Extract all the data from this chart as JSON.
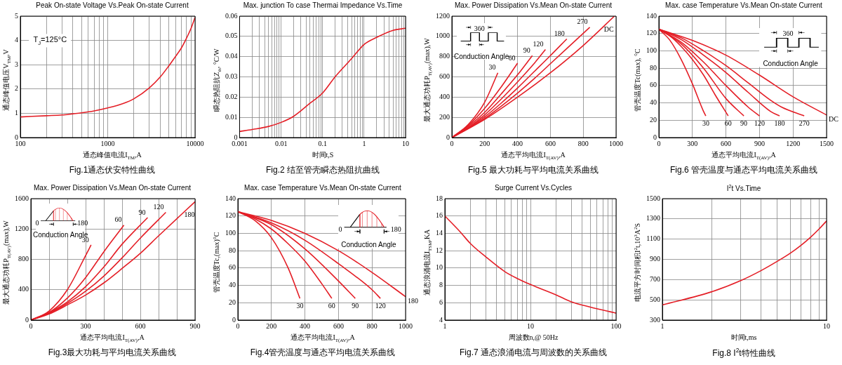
{
  "chart_data": [
    {
      "type": "line",
      "title": "Peak On-state Voltage Vs.Peak On-state Current",
      "xlabel": "通态峰值电流I$_{TM}$,A",
      "ylabel": "通态峰值电压V$_{TM}$,V",
      "annotations": [
        "Fig.1通态伏安特性曲线",
        "T$_{J}$=125°C"
      ],
      "log": "x",
      "grid": true,
      "legend": false,
      "color": "#e41e26",
      "x": [
        100,
        200,
        300,
        400,
        500,
        700,
        1000,
        1500,
        2000,
        3000,
        4000,
        5000,
        6000,
        7000,
        8000,
        9000,
        10000
      ],
      "values": [
        0.85,
        0.9,
        0.93,
        0.98,
        1.02,
        1.1,
        1.22,
        1.4,
        1.6,
        2.05,
        2.5,
        2.95,
        3.35,
        3.7,
        4.1,
        4.5,
        4.95
      ],
      "xlim": [
        100,
        10000
      ],
      "xticks": [
        100,
        {
          "value": 200,
          "label": null
        },
        {
          "value": 300,
          "label": null
        },
        {
          "value": 400,
          "label": null
        },
        {
          "value": 500,
          "label": null
        },
        {
          "value": 600,
          "label": null
        },
        {
          "value": 700,
          "label": null
        },
        {
          "value": 800,
          "label": null
        },
        {
          "value": 900,
          "label": null
        },
        1000,
        {
          "value": 2000,
          "label": null
        },
        {
          "value": 3000,
          "label": null
        },
        {
          "value": 4000,
          "label": null
        },
        {
          "value": 5000,
          "label": null
        },
        {
          "value": 6000,
          "label": null
        },
        {
          "value": 7000,
          "label": null
        },
        {
          "value": 8000,
          "label": null
        },
        {
          "value": 9000,
          "label": null
        },
        10000
      ],
      "ylim": [
        0,
        5
      ],
      "yticks": [
        0,
        1,
        2,
        3,
        4,
        5
      ]
    },
    {
      "type": "line",
      "title": "Max. junction To case Thermai Impedance Vs.Time",
      "xlabel": "时间t,S",
      "ylabel": "瞬态热阻抗Z$_{th}$, °C/W",
      "annotations": [
        "Fig.2 结至管壳瞬态热阻抗曲线"
      ],
      "log": "x",
      "grid": true,
      "legend": false,
      "color": "#e41e26",
      "x": [
        0.001,
        0.002,
        0.005,
        0.01,
        0.02,
        0.05,
        0.1,
        0.2,
        0.5,
        1,
        2,
        5,
        10
      ],
      "values": [
        0.003,
        0.004,
        0.0055,
        0.0075,
        0.0105,
        0.017,
        0.022,
        0.03,
        0.039,
        0.046,
        0.0495,
        0.053,
        0.054
      ],
      "xlim": [
        0.001,
        10
      ],
      "xticks": [
        0.001,
        {
          "value": 0.002,
          "label": null
        },
        {
          "value": 0.003,
          "label": null
        },
        {
          "value": 0.004,
          "label": null
        },
        {
          "value": 0.005,
          "label": null
        },
        {
          "value": 0.006,
          "label": null
        },
        {
          "value": 0.007,
          "label": null
        },
        {
          "value": 0.008,
          "label": null
        },
        {
          "value": 0.009,
          "label": null
        },
        0.01,
        {
          "value": 0.02,
          "label": null
        },
        {
          "value": 0.03,
          "label": null
        },
        {
          "value": 0.04,
          "label": null
        },
        {
          "value": 0.05,
          "label": null
        },
        {
          "value": 0.06,
          "label": null
        },
        {
          "value": 0.07,
          "label": null
        },
        {
          "value": 0.08,
          "label": null
        },
        {
          "value": 0.09,
          "label": null
        },
        0.1,
        {
          "value": 0.2,
          "label": null
        },
        {
          "value": 0.3,
          "label": null
        },
        {
          "value": 0.4,
          "label": null
        },
        {
          "value": 0.5,
          "label": null
        },
        {
          "value": 0.6,
          "label": null
        },
        {
          "value": 0.7,
          "label": null
        },
        {
          "value": 0.8,
          "label": null
        },
        {
          "value": 0.9,
          "label": null
        },
        1,
        {
          "value": 2,
          "label": null
        },
        {
          "value": 3,
          "label": null
        },
        {
          "value": 4,
          "label": null
        },
        {
          "value": 5,
          "label": null
        },
        {
          "value": 6,
          "label": null
        },
        {
          "value": 7,
          "label": null
        },
        {
          "value": 8,
          "label": null
        },
        {
          "value": 9,
          "label": null
        },
        10
      ],
      "ylim": [
        0,
        0.06
      ],
      "yticks": [
        0,
        0.01,
        0.02,
        0.03,
        0.04,
        0.05,
        0.06
      ]
    },
    {
      "type": "line",
      "title": "Max. Power Dissipation Vs.Mean On-state Current",
      "xlabel": "通态平均电流I$_{T(AV)}$,A",
      "ylabel": "最大通态功耗P$_{T(AV)}$(max),W",
      "annotations": [
        "Fig.5 最大功耗与平均电流关系曲线",
        "360",
        "Conduction Angle"
      ],
      "grid": true,
      "legend": false,
      "series": [
        {
          "name": "30",
          "color": "#e41e26",
          "x": [
            0,
            100,
            200,
            280
          ],
          "values": [
            0,
            130,
            350,
            640
          ]
        },
        {
          "name": "60",
          "color": "#e41e26",
          "x": [
            0,
            100,
            200,
            300,
            400
          ],
          "values": [
            0,
            120,
            290,
            500,
            735
          ]
        },
        {
          "name": "90",
          "color": "#e41e26",
          "x": [
            0,
            100,
            200,
            300,
            400,
            490
          ],
          "values": [
            0,
            110,
            250,
            430,
            620,
            810
          ]
        },
        {
          "name": "120",
          "color": "#e41e26",
          "x": [
            0,
            100,
            200,
            300,
            400,
            500,
            570
          ],
          "values": [
            0,
            100,
            225,
            380,
            550,
            730,
            870
          ]
        },
        {
          "name": "180",
          "color": "#e41e26",
          "x": [
            0,
            100,
            200,
            300,
            400,
            500,
            600,
            700
          ],
          "values": [
            0,
            95,
            205,
            340,
            490,
            650,
            810,
            975
          ]
        },
        {
          "name": "270",
          "color": "#e41e26",
          "x": [
            0,
            100,
            200,
            300,
            400,
            500,
            600,
            700,
            840
          ],
          "values": [
            0,
            90,
            190,
            310,
            440,
            580,
            730,
            880,
            1090
          ]
        },
        {
          "name": "DC",
          "color": "#e41e26",
          "x": [
            0,
            200,
            400,
            600,
            800,
            990
          ],
          "values": [
            0,
            180,
            400,
            640,
            910,
            1200
          ]
        }
      ],
      "xlim": [
        0,
        1000
      ],
      "xticks": [
        0,
        200,
        400,
        600,
        800,
        1000
      ],
      "ylim": [
        0,
        1200
      ],
      "yticks": [
        0,
        200,
        400,
        600,
        800,
        1000,
        1200
      ]
    },
    {
      "type": "line",
      "title": "Max. case Temperature Vs.Mean On-state Current",
      "xlabel": "通态平均电流I$_{T(AV)}$,A",
      "ylabel": "管壳温度Tc(max), °C",
      "annotations": [
        "Fig.6 管壳温度与通态平均电流关系曲线",
        "360",
        "Conduction Angle"
      ],
      "grid": true,
      "legend": false,
      "series": [
        {
          "name": "30",
          "color": "#e41e26",
          "x": [
            0,
            100,
            200,
            300,
            400,
            420
          ],
          "values": [
            125,
            112,
            90,
            62,
            30,
            25
          ]
        },
        {
          "name": "60",
          "color": "#e41e26",
          "x": [
            0,
            100,
            200,
            300,
            400,
            500,
            620
          ],
          "values": [
            125,
            117,
            105,
            90,
            72,
            50,
            25
          ]
        },
        {
          "name": "90",
          "color": "#e41e26",
          "x": [
            0,
            200,
            400,
            600,
            760
          ],
          "values": [
            125,
            108,
            80,
            45,
            25
          ]
        },
        {
          "name": "120",
          "color": "#e41e26",
          "x": [
            0,
            200,
            400,
            600,
            800,
            900
          ],
          "values": [
            125,
            110,
            87,
            60,
            35,
            25
          ]
        },
        {
          "name": "180",
          "color": "#e41e26",
          "x": [
            0,
            200,
            400,
            600,
            800,
            1000,
            1080
          ],
          "values": [
            125,
            113,
            95,
            75,
            52,
            30,
            25
          ]
        },
        {
          "name": "270",
          "color": "#e41e26",
          "x": [
            0,
            200,
            400,
            600,
            800,
            1000,
            1100,
            1300
          ],
          "values": [
            125,
            115,
            100,
            83,
            63,
            43,
            35,
            25
          ]
        },
        {
          "name": "DC",
          "color": "#e41e26",
          "x": [
            0,
            300,
            600,
            900,
            1200,
            1500
          ],
          "values": [
            125,
            112,
            95,
            72,
            47,
            26
          ]
        }
      ],
      "xlim": [
        0,
        1500
      ],
      "xticks": [
        0,
        300,
        600,
        900,
        1200,
        1500
      ],
      "ylim": [
        0,
        140
      ],
      "yticks": [
        0,
        20,
        40,
        60,
        80,
        100,
        120,
        140
      ]
    },
    {
      "type": "line",
      "title": "Max. Power Dissipation Vs.Mean On-state Current",
      "xlabel": "通态平均电流I$_{T(AV)}$,A",
      "ylabel": "最大通态功耗P$_{T(AV)}$(max),W",
      "annotations": [
        "Fig.3最大功耗与平均电流关系曲线",
        "0",
        "180",
        "Conduction Angle"
      ],
      "grid": true,
      "legend": false,
      "series": [
        {
          "name": "30",
          "color": "#e41e26",
          "x": [
            0,
            100,
            200,
            300,
            330
          ],
          "values": [
            0,
            120,
            400,
            850,
            990
          ]
        },
        {
          "name": "60",
          "color": "#e41e26",
          "x": [
            0,
            100,
            200,
            300,
            400,
            510
          ],
          "values": [
            0,
            100,
            290,
            560,
            900,
            1250
          ]
        },
        {
          "name": "90",
          "color": "#e41e26",
          "x": [
            0,
            100,
            200,
            300,
            400,
            500,
            640
          ],
          "values": [
            0,
            100,
            240,
            440,
            700,
            1000,
            1350
          ]
        },
        {
          "name": "120",
          "color": "#e41e26",
          "x": [
            0,
            100,
            200,
            300,
            400,
            500,
            600,
            740
          ],
          "values": [
            0,
            90,
            220,
            380,
            580,
            820,
            1080,
            1420
          ]
        },
        {
          "name": "180",
          "color": "#e41e26",
          "x": [
            0,
            100,
            200,
            300,
            400,
            500,
            600,
            700,
            900
          ],
          "values": [
            0,
            80,
            200,
            330,
            490,
            680,
            880,
            1110,
            1560
          ]
        }
      ],
      "xlim": [
        0,
        900
      ],
      "xticks": [
        0,
        {
          "value": 100,
          "label": null
        },
        {
          "value": 200,
          "label": null
        },
        300,
        {
          "value": 400,
          "label": null
        },
        {
          "value": 500,
          "label": null
        },
        600,
        {
          "value": 700,
          "label": null
        },
        {
          "value": 800,
          "label": null
        },
        900
      ],
      "ylim": [
        0,
        1600
      ],
      "yticks": [
        0,
        400,
        800,
        1200,
        1600
      ]
    },
    {
      "type": "line",
      "title": "Max. case Temperature Vs.Mean On-state Current",
      "xlabel": "通态平均电流I$_{T(AV)}$,A",
      "ylabel": "管壳温度Tc,(max)°C",
      "annotations": [
        "Fig.4管壳温度与通态平均电流关系曲线",
        "0",
        "180",
        "Conduction Angle"
      ],
      "grid": true,
      "legend": false,
      "series": [
        {
          "name": "30",
          "color": "#e41e26",
          "x": [
            0,
            100,
            200,
            300,
            370
          ],
          "values": [
            125,
            115,
            95,
            60,
            25
          ]
        },
        {
          "name": "60",
          "color": "#e41e26",
          "x": [
            0,
            100,
            200,
            300,
            400,
            500,
            560
          ],
          "values": [
            125,
            117,
            105,
            88,
            68,
            42,
            25
          ]
        },
        {
          "name": "90",
          "color": "#e41e26",
          "x": [
            0,
            200,
            400,
            600,
            700
          ],
          "values": [
            125,
            110,
            82,
            45,
            25
          ]
        },
        {
          "name": "120",
          "color": "#e41e26",
          "x": [
            0,
            200,
            400,
            600,
            800,
            850
          ],
          "values": [
            125,
            112,
            92,
            65,
            35,
            25
          ]
        },
        {
          "name": "180",
          "color": "#e41e26",
          "x": [
            0,
            200,
            400,
            600,
            800,
            1000
          ],
          "values": [
            125,
            115,
            100,
            80,
            55,
            27
          ]
        }
      ],
      "xlim": [
        0,
        1000
      ],
      "xticks": [
        0,
        200,
        400,
        600,
        800,
        1000
      ],
      "ylim": [
        0,
        140
      ],
      "yticks": [
        0,
        20,
        40,
        60,
        80,
        100,
        120,
        140
      ]
    },
    {
      "type": "line",
      "title": "Surge Current Vs.Cycles",
      "xlabel": "周波数n,@ 50Hz",
      "ylabel": "通态浪涌电流I$_{TSM}$,KA",
      "annotations": [
        "Fig.7 通态浪涌电流与周波数的关系曲线"
      ],
      "log": "x",
      "grid": true,
      "legend": false,
      "color": "#e41e26",
      "x": [
        1,
        1.5,
        2,
        3,
        5,
        7,
        10,
        20,
        30,
        50,
        100
      ],
      "values": [
        16,
        14.2,
        12.8,
        11.3,
        9.6,
        8.8,
        8.1,
        6.9,
        6.1,
        5.5,
        4.8
      ],
      "xlim": [
        1,
        100
      ],
      "xticks": [
        1,
        {
          "value": 2,
          "label": null
        },
        {
          "value": 3,
          "label": null
        },
        {
          "value": 4,
          "label": null
        },
        {
          "value": 5,
          "label": null
        },
        {
          "value": 6,
          "label": null
        },
        {
          "value": 7,
          "label": null
        },
        {
          "value": 8,
          "label": null
        },
        {
          "value": 9,
          "label": null
        },
        10,
        {
          "value": 20,
          "label": null
        },
        {
          "value": 30,
          "label": null
        },
        {
          "value": 40,
          "label": null
        },
        {
          "value": 50,
          "label": null
        },
        {
          "value": 60,
          "label": null
        },
        {
          "value": 70,
          "label": null
        },
        {
          "value": 80,
          "label": null
        },
        {
          "value": 90,
          "label": null
        },
        100
      ],
      "ylim": [
        4,
        18
      ],
      "yticks": [
        4,
        6,
        8,
        10,
        12,
        14,
        16,
        18
      ]
    },
    {
      "type": "line",
      "title": "I$^{2}$t  Vs.Time",
      "xlabel": "时间t,ms",
      "ylabel": "电流平方时间积I$^{2}$t,10$^{3}$A$^{2}$S",
      "annotations": [
        "Fig.8 I$^{2}$t特性曲线"
      ],
      "log": "x",
      "grid": true,
      "legend": false,
      "color": "#e41e26",
      "x": [
        1,
        2,
        3,
        4,
        5,
        6,
        7,
        8,
        9,
        10
      ],
      "values": [
        450,
        580,
        690,
        790,
        880,
        960,
        1040,
        1120,
        1200,
        1280
      ],
      "xlim": [
        1,
        10
      ],
      "xticks": [
        1,
        {
          "value": 2,
          "label": null
        },
        {
          "value": 3,
          "label": null
        },
        {
          "value": 4,
          "label": null
        },
        {
          "value": 5,
          "label": null
        },
        {
          "value": 6,
          "label": null
        },
        {
          "value": 7,
          "label": null
        },
        {
          "value": 8,
          "label": null
        },
        {
          "value": 9,
          "label": null
        },
        10
      ],
      "ylim": [
        300,
        1500
      ],
      "yticks": [
        300,
        500,
        700,
        900,
        1100,
        1300,
        1500
      ]
    }
  ]
}
